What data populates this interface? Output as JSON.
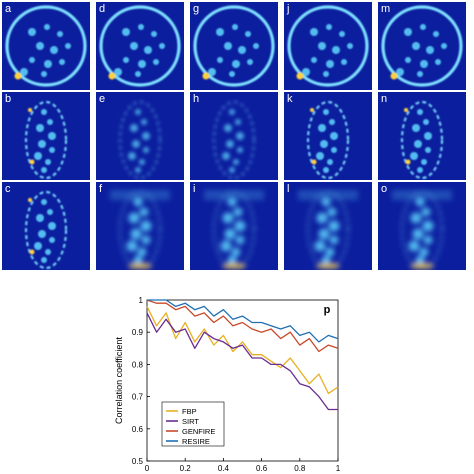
{
  "panels": [
    {
      "letter": "a",
      "shape": "circle",
      "style": "sharp"
    },
    {
      "letter": "d",
      "shape": "circle",
      "style": "sharp"
    },
    {
      "letter": "g",
      "shape": "circle",
      "style": "sharp"
    },
    {
      "letter": "j",
      "shape": "circle",
      "style": "sharp"
    },
    {
      "letter": "m",
      "shape": "circle",
      "style": "sharp"
    },
    {
      "letter": "b",
      "shape": "ellipse",
      "style": "dashed"
    },
    {
      "letter": "e",
      "shape": "ellipse",
      "style": "faint"
    },
    {
      "letter": "h",
      "shape": "ellipse",
      "style": "faint"
    },
    {
      "letter": "k",
      "shape": "ellipse",
      "style": "dashed"
    },
    {
      "letter": "n",
      "shape": "ellipse",
      "style": "dashed"
    },
    {
      "letter": "c",
      "shape": "ellipse",
      "style": "dashed"
    },
    {
      "letter": "f",
      "shape": "ellipse",
      "style": "blurred"
    },
    {
      "letter": "i",
      "shape": "ellipse",
      "style": "blurred"
    },
    {
      "letter": "l",
      "shape": "ellipse",
      "style": "blurred"
    },
    {
      "letter": "o",
      "shape": "ellipse",
      "style": "blurred"
    }
  ],
  "colors": {
    "panel_background": "#0b1e9e",
    "ring": "#7ee0ff",
    "blob": "#5fd8ff",
    "hot": "#ffd23a"
  },
  "chart_data": {
    "type": "line",
    "panel_label": "p",
    "title": "",
    "xlabel": "",
    "ylabel": "Correlation coefficient",
    "xlim": [
      0,
      1
    ],
    "ylim": [
      0.5,
      1
    ],
    "xticks": [
      0,
      0.2,
      0.4,
      0.6,
      0.8,
      1
    ],
    "xtick_labels": [
      "0",
      "0.2",
      "0.4",
      "0.6",
      "0.8",
      "1"
    ],
    "yticks": [
      0.5,
      0.6,
      0.7,
      0.8,
      0.9,
      1
    ],
    "ytick_labels": [
      "0.5",
      "0.6",
      "0.7",
      "0.8",
      "0.9",
      "1"
    ],
    "legend_position": "bottom-left",
    "x": [
      0,
      0.05,
      0.1,
      0.15,
      0.2,
      0.25,
      0.3,
      0.35,
      0.4,
      0.45,
      0.5,
      0.55,
      0.6,
      0.65,
      0.7,
      0.75,
      0.8,
      0.85,
      0.9,
      0.95,
      1.0
    ],
    "series": [
      {
        "name": "FBP",
        "color": "#e8b021",
        "values": [
          0.98,
          0.92,
          0.96,
          0.88,
          0.93,
          0.87,
          0.91,
          0.86,
          0.89,
          0.84,
          0.87,
          0.83,
          0.83,
          0.81,
          0.79,
          0.82,
          0.78,
          0.74,
          0.77,
          0.71,
          0.73
        ]
      },
      {
        "name": "SIRT",
        "color": "#6a2c91",
        "values": [
          0.96,
          0.9,
          0.94,
          0.9,
          0.91,
          0.85,
          0.9,
          0.88,
          0.87,
          0.85,
          0.86,
          0.82,
          0.82,
          0.8,
          0.8,
          0.78,
          0.74,
          0.73,
          0.7,
          0.66,
          0.66
        ]
      },
      {
        "name": "GENFIRE",
        "color": "#c9492a",
        "values": [
          1.0,
          0.99,
          0.99,
          0.97,
          0.98,
          0.95,
          0.96,
          0.93,
          0.95,
          0.92,
          0.93,
          0.91,
          0.9,
          0.91,
          0.88,
          0.9,
          0.86,
          0.88,
          0.84,
          0.86,
          0.85
        ]
      },
      {
        "name": "RESIRE",
        "color": "#1f6fb4",
        "values": [
          1.0,
          1.0,
          1.0,
          0.98,
          0.99,
          0.97,
          0.98,
          0.95,
          0.97,
          0.94,
          0.95,
          0.93,
          0.93,
          0.92,
          0.91,
          0.92,
          0.89,
          0.9,
          0.87,
          0.89,
          0.88
        ]
      }
    ]
  }
}
